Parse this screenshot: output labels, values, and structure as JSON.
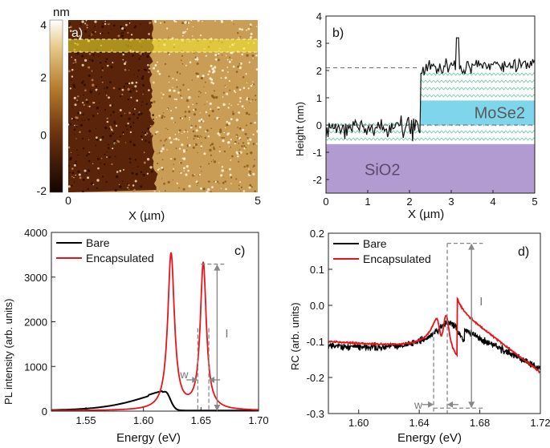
{
  "chart_data": [
    {
      "panel": "a)",
      "type": "heatmap",
      "colorbar": {
        "unit": "nm",
        "ticks": [
          "4",
          "2",
          "0",
          "-2"
        ],
        "range": [
          -2,
          4
        ]
      },
      "xlabel": "X (µm)",
      "xticks": [
        "0",
        "5"
      ],
      "xlim": [
        0,
        5
      ],
      "colors": {
        "low": "#2a0a02",
        "mid": "#a4641e",
        "high": "#fff6d8",
        "band": "#f4ea2a"
      }
    },
    {
      "panel": "b)",
      "type": "line",
      "xlabel": "X (µm)",
      "ylabel": "Height (nm)",
      "xlim": [
        0,
        5
      ],
      "ylim": [
        -2.5,
        4
      ],
      "xticks": [
        "0",
        "1",
        "2",
        "3",
        "4",
        "5"
      ],
      "yticks": [
        "-2",
        "-1",
        "0",
        "1",
        "2",
        "3",
        "4"
      ],
      "step_x": 2.25,
      "levels": {
        "left": 0,
        "right": 2.1
      },
      "layers": [
        {
          "label": "MoSe2",
          "ymin": 0,
          "ymax": 0.9,
          "color": "#7fd6ec"
        },
        {
          "label": "SiO2",
          "ymin": -2.5,
          "ymax": -0.7,
          "color": "#b29bd0"
        }
      ]
    },
    {
      "panel": "c)",
      "type": "line",
      "xlabel": "Energy (eV)",
      "ylabel": "PL intensity (arb. units)",
      "xlim": [
        1.52,
        1.7
      ],
      "ylim": [
        0,
        4000
      ],
      "xticks": [
        "1.55",
        "1.60",
        "1.65",
        "1.70"
      ],
      "yticks": [
        "0",
        "1000",
        "2000",
        "3000",
        "4000"
      ],
      "series": [
        {
          "name": "Bare",
          "color": "#000000",
          "peaks": [
            {
              "x": 1.619,
              "amp": 420,
              "w": 0.02
            }
          ]
        },
        {
          "name": "Encapsulated",
          "color": "#e8141b",
          "peaks": [
            {
              "x": 1.624,
              "amp": 3500,
              "w": 0.0035
            },
            {
              "x": 1.652,
              "amp": 3280,
              "w": 0.0032
            }
          ]
        }
      ],
      "annotations": {
        "w": "w",
        "I": "I"
      }
    },
    {
      "panel": "d)",
      "type": "line",
      "xlabel": "Energy (eV)",
      "ylabel": "RC (arb. units)",
      "xlim": [
        1.58,
        1.72
      ],
      "ylim": [
        -0.3,
        0.2
      ],
      "xticks": [
        "1.60",
        "1.64",
        "1.68",
        "1.72"
      ],
      "yticks": [
        "-0.3",
        "-0.2",
        "-0.1",
        "0.0",
        "0.1",
        "0.2"
      ],
      "series": [
        {
          "name": "Bare",
          "color": "#000000",
          "x0": 1.662
        },
        {
          "name": "Encapsulated",
          "color": "#e8141b",
          "x0": 1.652
        }
      ],
      "annotations": {
        "w": "w",
        "I": "I"
      }
    }
  ]
}
